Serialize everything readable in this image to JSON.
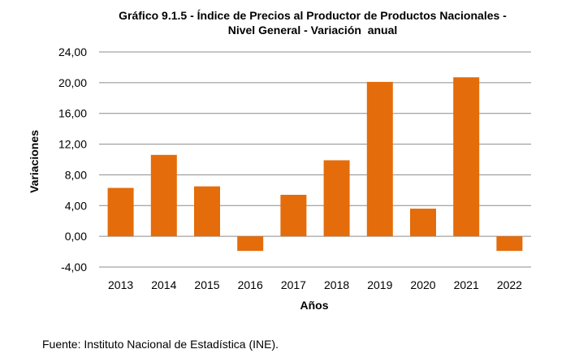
{
  "chart_data": {
    "type": "bar",
    "title_line1": "Gráfico 9.1.5 - Índice de Precios al Productor de Productos Nacionales -",
    "title_line2": "Nivel General - Variación  anual",
    "xlabel": "Años",
    "ylabel": "Variaciones",
    "categories": [
      "2013",
      "2014",
      "2015",
      "2016",
      "2017",
      "2018",
      "2019",
      "2020",
      "2021",
      "2022"
    ],
    "values": [
      6.3,
      10.6,
      6.5,
      -1.9,
      5.4,
      9.9,
      20.1,
      3.6,
      20.7,
      -1.9
    ],
    "ylim": [
      -4,
      24
    ],
    "yticks": [
      "-4,00",
      "0,00",
      "4,00",
      "8,00",
      "12,00",
      "16,00",
      "20,00",
      "24,00"
    ],
    "grid": true,
    "bar_color": "#E46C0A"
  },
  "source": "Fuente: Instituto Nacional de Estadística (INE)."
}
